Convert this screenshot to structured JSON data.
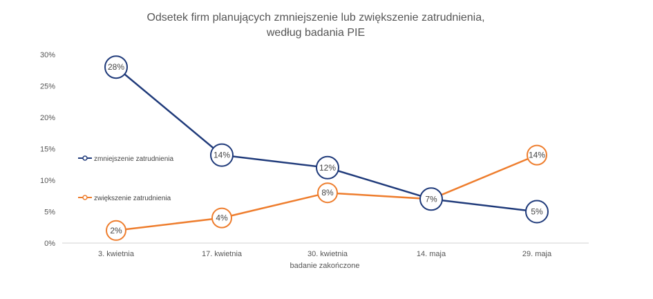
{
  "chart_data": {
    "type": "line",
    "title_line1": "Odsetek firm planujących zmniejszenie lub zwiększenie zatrudnienia,",
    "title_line2": "według badania PIE",
    "xlabel": "badanie zakończone",
    "ylabel": "",
    "categories": [
      "3. kwietnia",
      "17. kwietnia",
      "30. kwietnia",
      "14. maja",
      "29. maja"
    ],
    "ylim": [
      0,
      30
    ],
    "yticks": [
      "0%",
      "5%",
      "10%",
      "15%",
      "20%",
      "25%",
      "30%"
    ],
    "grid": false,
    "legend_position": "left-middle",
    "series": [
      {
        "name": "zmniejszenie zatrudnienia",
        "color": "#1f3a7a",
        "values": [
          28,
          14,
          12,
          7,
          5
        ],
        "labels": [
          "28%",
          "14%",
          "12%",
          "7%",
          "5%"
        ]
      },
      {
        "name": "zwiększenie zatrudnienia",
        "color": "#ee7d2d",
        "values": [
          2,
          4,
          8,
          7,
          14
        ],
        "labels": [
          "2%",
          "4%",
          "8%",
          "7%",
          "14%"
        ]
      }
    ]
  }
}
